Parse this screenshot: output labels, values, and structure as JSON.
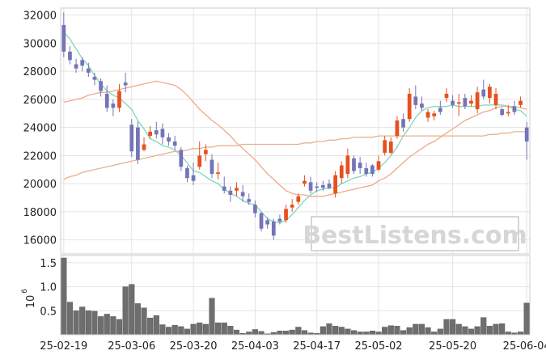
{
  "chart_data": {
    "type": "candlestick",
    "watermark": "BestListens.com",
    "dates": [
      "25-02-19",
      "25-02-20",
      "25-02-21",
      "25-02-24",
      "25-02-25",
      "25-02-26",
      "25-02-27",
      "25-02-28",
      "25-03-03",
      "25-03-04",
      "25-03-05",
      "25-03-06",
      "25-03-07",
      "25-03-10",
      "25-03-11",
      "25-03-12",
      "25-03-13",
      "25-03-14",
      "25-03-17",
      "25-03-18",
      "25-03-19",
      "25-03-20",
      "25-03-21",
      "25-03-24",
      "25-03-25",
      "25-03-26",
      "25-03-27",
      "25-03-28",
      "25-03-31",
      "25-04-01",
      "25-04-02",
      "25-04-03",
      "25-04-04",
      "25-04-07",
      "25-04-08",
      "25-04-09",
      "25-04-10",
      "25-04-11",
      "25-04-14",
      "25-04-15",
      "25-04-16",
      "25-04-17",
      "25-04-18",
      "25-04-21",
      "25-04-22",
      "25-04-23",
      "25-04-24",
      "25-04-25",
      "25-04-28",
      "25-04-29",
      "25-04-30",
      "25-05-01",
      "25-05-02",
      "25-05-05",
      "25-05-06",
      "25-05-07",
      "25-05-08",
      "25-05-09",
      "25-05-12",
      "25-05-13",
      "25-05-14",
      "25-05-15",
      "25-05-16",
      "25-05-19",
      "25-05-20",
      "25-05-21",
      "25-05-22",
      "25-05-23",
      "25-05-26",
      "25-05-27",
      "25-05-28",
      "25-05-29",
      "25-05-30",
      "25-06-02",
      "25-06-03",
      "25-06-04"
    ],
    "x_tick_labels": [
      "25-02-19",
      "25-03-06",
      "25-03-20",
      "25-04-03",
      "25-04-17",
      "25-05-02",
      "25-05-20",
      "25-06-04"
    ],
    "x_tick_indices": [
      0,
      11,
      21,
      31,
      41,
      51,
      63,
      75
    ],
    "price_axis": {
      "ylim": [
        15000,
        32500
      ],
      "ticks": [
        16000,
        18000,
        20000,
        22000,
        24000,
        26000,
        28000,
        30000,
        32000
      ]
    },
    "volume_axis": {
      "ylim": [
        0,
        1650000
      ],
      "ticks": [
        0.5,
        1.0,
        1.5
      ],
      "exponent_label": "10",
      "exponent_power": "6"
    },
    "up_color": "#e8501e",
    "down_color": "#7474b8",
    "volume_color": "#6e6e6e",
    "ma_series": [
      {
        "period": 5,
        "color": "#7fd6b8"
      },
      {
        "period": 20,
        "color": "#f0a888"
      },
      {
        "period": 60,
        "color": "#e8b090"
      }
    ],
    "open": [
      31300,
      29400,
      28500,
      28800,
      28200,
      27600,
      27300,
      26400,
      25700,
      25400,
      27200,
      24200,
      24000,
      22400,
      23400,
      23800,
      23900,
      23300,
      23000,
      22400,
      21100,
      20600,
      21200,
      22100,
      21700,
      20700,
      19800,
      19500,
      19500,
      19400,
      18900,
      18500,
      17900,
      17400,
      17300,
      17500,
      17400,
      18300,
      18700,
      20000,
      20100,
      19800,
      19900,
      20000,
      19300,
      20400,
      20700,
      21800,
      21500,
      21100,
      21300,
      21000,
      22200,
      22200,
      23400,
      24600,
      24600,
      26200,
      25700,
      24700,
      24800,
      25400,
      26100,
      25900,
      25700,
      26100,
      25700,
      25300,
      26700,
      26100,
      25600,
      25300,
      25000,
      25500,
      25600,
      24000
    ],
    "close": [
      29400,
      28800,
      28200,
      28400,
      27900,
      27400,
      26600,
      25400,
      25400,
      26600,
      27000,
      22300,
      21700,
      22800,
      23700,
      23500,
      23300,
      23000,
      22700,
      21200,
      20400,
      20200,
      22000,
      22400,
      20700,
      20800,
      19500,
      19200,
      19700,
      19100,
      18700,
      17900,
      16800,
      17100,
      16300,
      17300,
      18200,
      18500,
      19100,
      20200,
      19500,
      19700,
      19700,
      19700,
      20600,
      21300,
      22000,
      20900,
      21100,
      20700,
      20700,
      21600,
      23100,
      23000,
      24500,
      24000,
      26400,
      25600,
      25400,
      25100,
      25000,
      25100,
      26400,
      25600,
      25800,
      25500,
      25900,
      26500,
      26200,
      26900,
      26400,
      24900,
      25100,
      25100,
      25900,
      23000
    ],
    "high": [
      32200,
      29800,
      28900,
      29000,
      28600,
      27900,
      27500,
      27000,
      26000,
      27100,
      27900,
      24600,
      24400,
      23300,
      24100,
      24400,
      24300,
      23600,
      23400,
      22600,
      21300,
      21500,
      23000,
      22800,
      22100,
      21500,
      20500,
      19800,
      20100,
      19900,
      19300,
      18800,
      18000,
      17600,
      17500,
      17800,
      18500,
      18900,
      19300,
      20600,
      20500,
      20100,
      20200,
      20300,
      20900,
      21600,
      22500,
      22000,
      21900,
      21500,
      21400,
      22000,
      23400,
      23300,
      24800,
      25000,
      26800,
      27000,
      26200,
      25300,
      25200,
      25900,
      26800,
      26300,
      26400,
      26400,
      26300,
      26900,
      27400,
      27100,
      26800,
      25400,
      25600,
      25900,
      26200,
      24400
    ],
    "low": [
      29000,
      28500,
      27900,
      28000,
      27600,
      27000,
      26200,
      25100,
      24800,
      25100,
      26500,
      21900,
      21400,
      22300,
      23200,
      23200,
      22800,
      22700,
      22400,
      20900,
      20100,
      19900,
      21000,
      21600,
      20400,
      20300,
      19300,
      18700,
      19100,
      18700,
      18500,
      17600,
      16600,
      16800,
      16000,
      17100,
      17200,
      18000,
      18500,
      19800,
      19300,
      19400,
      19500,
      19600,
      19000,
      20000,
      20400,
      20700,
      20700,
      20500,
      20500,
      20900,
      22000,
      22100,
      23200,
      23700,
      24400,
      25300,
      25200,
      24400,
      24500,
      24900,
      25800,
      25400,
      24800,
      25300,
      25500,
      25000,
      26000,
      25700,
      25300,
      24800,
      24800,
      24900,
      25400,
      21700
    ],
    "volume": [
      1600000,
      680000,
      500000,
      580000,
      500000,
      490000,
      380000,
      430000,
      380000,
      320000,
      1000000,
      1050000,
      650000,
      560000,
      350000,
      400000,
      210000,
      160000,
      200000,
      170000,
      120000,
      220000,
      250000,
      220000,
      760000,
      250000,
      250000,
      180000,
      100000,
      30000,
      60000,
      110000,
      70000,
      20000,
      50000,
      80000,
      80000,
      100000,
      160000,
      90000,
      40000,
      30000,
      170000,
      230000,
      180000,
      160000,
      120000,
      90000,
      60000,
      60000,
      80000,
      60000,
      160000,
      190000,
      180000,
      90000,
      150000,
      220000,
      220000,
      150000,
      60000,
      120000,
      320000,
      320000,
      220000,
      170000,
      120000,
      170000,
      360000,
      180000,
      220000,
      230000,
      60000,
      40000,
      60000,
      660000
    ],
    "ma5": [
      30800,
      30300,
      29600,
      28900,
      28400,
      27700,
      27100,
      26600,
      26300,
      26100,
      25700,
      25300,
      24500,
      23900,
      23200,
      23000,
      22700,
      22600,
      22400,
      22000,
      21500,
      20900,
      20800,
      20500,
      20200,
      20000,
      19600,
      19300,
      19100,
      18800,
      18600,
      18500,
      18000,
      17500,
      17300,
      17200,
      17400,
      17800,
      18300,
      18800,
      19200,
      19500,
      19600,
      19700,
      19700,
      20000,
      20200,
      20400,
      20500,
      20700,
      20800,
      21100,
      21500,
      22000,
      22600,
      23400,
      24000,
      24700,
      25200,
      25400,
      25500,
      25500,
      25500,
      25600,
      25500,
      25500,
      25500,
      25500,
      25600,
      25600,
      25600,
      25600,
      25500,
      25300,
      25200,
      24800
    ],
    "ma20": [
      25800,
      25900,
      26000,
      26100,
      26300,
      26400,
      26500,
      26500,
      26600,
      26700,
      26800,
      26900,
      27000,
      27100,
      27200,
      27300,
      27200,
      27100,
      27000,
      26700,
      26300,
      25800,
      25300,
      24900,
      24500,
      24200,
      23800,
      23400,
      22900,
      22500,
      22100,
      21700,
      21200,
      20700,
      20300,
      19900,
      19500,
      19300,
      19200,
      19200,
      19100,
      19100,
      19100,
      19200,
      19300,
      19400,
      19500,
      19600,
      19700,
      19800,
      19900,
      20200,
      20400,
      20700,
      21100,
      21500,
      21900,
      22200,
      22500,
      22800,
      23000,
      23300,
      23600,
      23900,
      24200,
      24500,
      24700,
      24900,
      25100,
      25200,
      25400,
      25500,
      25500,
      25500,
      25400,
      25300
    ],
    "ma60": [
      20300,
      20500,
      20600,
      20800,
      20900,
      21000,
      21100,
      21200,
      21300,
      21400,
      21500,
      21600,
      21700,
      21800,
      21900,
      22000,
      22100,
      22200,
      22300,
      22300,
      22400,
      22500,
      22500,
      22600,
      22600,
      22700,
      22700,
      22700,
      22700,
      22800,
      22800,
      22800,
      22800,
      22800,
      22800,
      22800,
      22800,
      22800,
      22800,
      22900,
      22900,
      23000,
      23000,
      23100,
      23100,
      23200,
      23200,
      23300,
      23300,
      23300,
      23300,
      23400,
      23400,
      23400,
      23400,
      23400,
      23400,
      23400,
      23400,
      23400,
      23400,
      23400,
      23400,
      23400,
      23400,
      23400,
      23400,
      23400,
      23400,
      23500,
      23500,
      23600,
      23600,
      23700,
      23700,
      23700
    ]
  }
}
